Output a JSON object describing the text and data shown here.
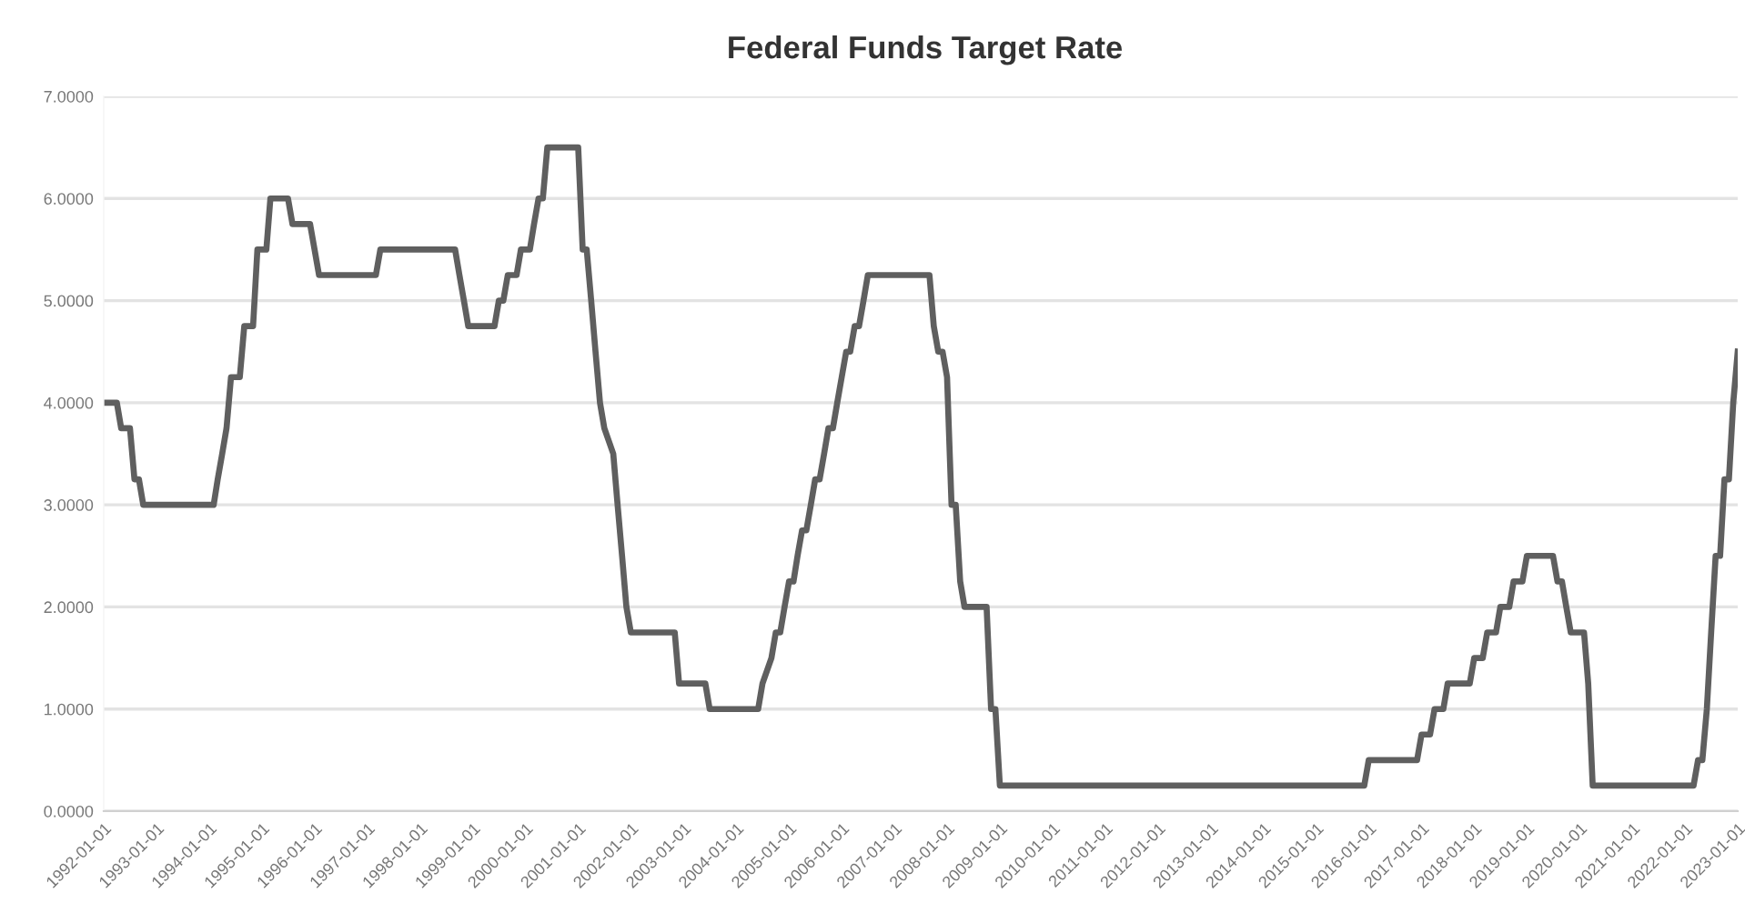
{
  "chart_data": {
    "type": "line",
    "title": "Federal Funds Target Rate",
    "x": [
      "1992-01",
      "1992-04",
      "1992-05",
      "1992-07",
      "1992-08",
      "1992-09",
      "1992-10",
      "1994-02",
      "1994-03",
      "1994-04",
      "1994-05",
      "1994-06",
      "1994-08",
      "1994-09",
      "1994-11",
      "1994-12",
      "1995-02",
      "1995-03",
      "1995-07",
      "1995-08",
      "1995-12",
      "1996-01",
      "1996-02",
      "1997-03",
      "1997-04",
      "1998-09",
      "1998-10",
      "1998-11",
      "1998-12",
      "1999-06",
      "1999-07",
      "1999-08",
      "1999-09",
      "1999-11",
      "1999-12",
      "2000-02",
      "2000-03",
      "2000-04",
      "2000-05",
      "2000-06",
      "2001-01",
      "2001-02",
      "2001-03",
      "2001-04",
      "2001-05",
      "2001-06",
      "2001-07",
      "2001-09",
      "2001-10",
      "2001-11",
      "2001-12",
      "2002-01",
      "2002-11",
      "2002-12",
      "2003-06",
      "2003-07",
      "2004-06",
      "2004-07",
      "2004-09",
      "2004-10",
      "2004-11",
      "2004-12",
      "2005-01",
      "2005-02",
      "2005-03",
      "2005-04",
      "2005-05",
      "2005-06",
      "2005-07",
      "2005-08",
      "2005-09",
      "2005-10",
      "2005-11",
      "2005-12",
      "2006-01",
      "2006-02",
      "2006-03",
      "2006-04",
      "2006-05",
      "2006-06",
      "2006-07",
      "2007-09",
      "2007-10",
      "2007-11",
      "2007-12",
      "2008-01",
      "2008-02",
      "2008-03",
      "2008-04",
      "2008-05",
      "2008-10",
      "2008-11",
      "2008-12",
      "2009-01",
      "2015-12",
      "2016-01",
      "2016-12",
      "2017-01",
      "2017-03",
      "2017-04",
      "2017-06",
      "2017-07",
      "2017-12",
      "2018-01",
      "2018-03",
      "2018-04",
      "2018-06",
      "2018-07",
      "2018-09",
      "2018-10",
      "2018-12",
      "2019-01",
      "2019-07",
      "2019-08",
      "2019-09",
      "2019-10",
      "2019-11",
      "2020-02",
      "2020-03",
      "2020-04",
      "2022-03",
      "2022-04",
      "2022-05",
      "2022-06",
      "2022-07",
      "2022-08",
      "2022-09",
      "2022-10",
      "2022-11",
      "2022-12",
      "2023-01"
    ],
    "series": [
      {
        "color": "#5f5f5f",
        "values": [
          4.0,
          4.0,
          3.75,
          3.75,
          3.25,
          3.25,
          3.0,
          3.0,
          3.25,
          3.5,
          3.75,
          4.25,
          4.25,
          4.75,
          4.75,
          5.5,
          5.5,
          6.0,
          6.0,
          5.75,
          5.75,
          5.5,
          5.25,
          5.25,
          5.5,
          5.5,
          5.25,
          5.0,
          4.75,
          4.75,
          5.0,
          5.0,
          5.25,
          5.25,
          5.5,
          5.5,
          5.75,
          6.0,
          6.0,
          6.5,
          6.5,
          5.5,
          5.5,
          5.0,
          4.5,
          4.0,
          3.75,
          3.5,
          3.0,
          2.5,
          2.0,
          1.75,
          1.75,
          1.25,
          1.25,
          1.0,
          1.0,
          1.25,
          1.5,
          1.75,
          1.75,
          2.0,
          2.25,
          2.25,
          2.5,
          2.75,
          2.75,
          3.0,
          3.25,
          3.25,
          3.5,
          3.75,
          3.75,
          4.0,
          4.25,
          4.5,
          4.5,
          4.75,
          4.75,
          5.0,
          5.25,
          5.25,
          4.75,
          4.5,
          4.5,
          4.25,
          3.0,
          3.0,
          2.25,
          2.0,
          2.0,
          1.0,
          1.0,
          0.25,
          0.25,
          0.5,
          0.5,
          0.75,
          0.75,
          1.0,
          1.0,
          1.25,
          1.25,
          1.5,
          1.5,
          1.75,
          1.75,
          2.0,
          2.0,
          2.25,
          2.25,
          2.5,
          2.5,
          2.25,
          2.25,
          2.0,
          1.75,
          1.75,
          1.25,
          0.25,
          0.25,
          0.5,
          0.5,
          1.0,
          1.75,
          2.5,
          2.5,
          3.25,
          3.25,
          4.0,
          4.5
        ]
      }
    ],
    "xlim": [
      "1992-01-01",
      "2023-01-01"
    ],
    "xticks": [
      "1992-01-01",
      "1993-01-01",
      "1994-01-01",
      "1995-01-01",
      "1996-01-01",
      "1997-01-01",
      "1998-01-01",
      "1999-01-01",
      "2000-01-01",
      "2001-01-01",
      "2002-01-01",
      "2003-01-01",
      "2004-01-01",
      "2005-01-01",
      "2006-01-01",
      "2007-01-01",
      "2008-01-01",
      "2009-01-01",
      "2010-01-01",
      "2011-01-01",
      "2012-01-01",
      "2013-01-01",
      "2014-01-01",
      "2015-01-01",
      "2016-01-01",
      "2017-01-01",
      "2018-01-01",
      "2019-01-01",
      "2020-01-01",
      "2021-01-01",
      "2022-01-01",
      "2023-01-01"
    ],
    "ylim": [
      0,
      7
    ],
    "yticks": [
      {
        "value": 0,
        "label": "0.0000"
      },
      {
        "value": 1,
        "label": "1.0000"
      },
      {
        "value": 2,
        "label": "2.0000"
      },
      {
        "value": 3,
        "label": "3.0000"
      },
      {
        "value": 4,
        "label": "4.0000"
      },
      {
        "value": 5,
        "label": "5.0000"
      },
      {
        "value": 6,
        "label": "6.0000"
      },
      {
        "value": 7,
        "label": "7.0000"
      }
    ],
    "grid": "y",
    "marker": "none",
    "line_style": "solid"
  }
}
